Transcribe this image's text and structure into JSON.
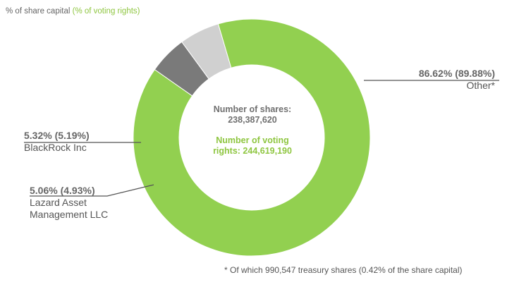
{
  "legend_title": {
    "main": "% of share capital",
    "accent": "(% of voting rights)"
  },
  "center": {
    "shares_label": "Number of shares:",
    "shares_value": "238,387,620",
    "voting_label": "Number  of voting",
    "voting_value": "rights: 244,619,190"
  },
  "labels": {
    "other": {
      "pct": "86.62%",
      "voting": "(89.88%)",
      "name": "Other*"
    },
    "blackrock": {
      "pct": "5.32%",
      "voting": "(5.19%)",
      "name": "BlackRock Inc"
    },
    "lazard": {
      "pct": "5.06%",
      "voting": "(4.93%)",
      "name_line1": "Lazard Asset",
      "name_line2": "Management LLC"
    }
  },
  "footnote": "* Of which 990,547 treasury shares  (0.42% of the share capital)",
  "colors": {
    "other": "#92d050",
    "blackrock": "#d0d0d0",
    "lazard": "#7a7a7a",
    "leader": "#555555"
  },
  "chart_data": {
    "type": "pie",
    "donut": true,
    "categories": [
      "Other*",
      "BlackRock Inc",
      "Lazard Asset Management LLC"
    ],
    "series": [
      {
        "name": "% of share capital",
        "values": [
          86.62,
          5.32,
          5.06
        ]
      },
      {
        "name": "% of voting rights",
        "values": [
          89.88,
          5.19,
          4.93
        ]
      }
    ],
    "start_angle_deg": 215
  }
}
